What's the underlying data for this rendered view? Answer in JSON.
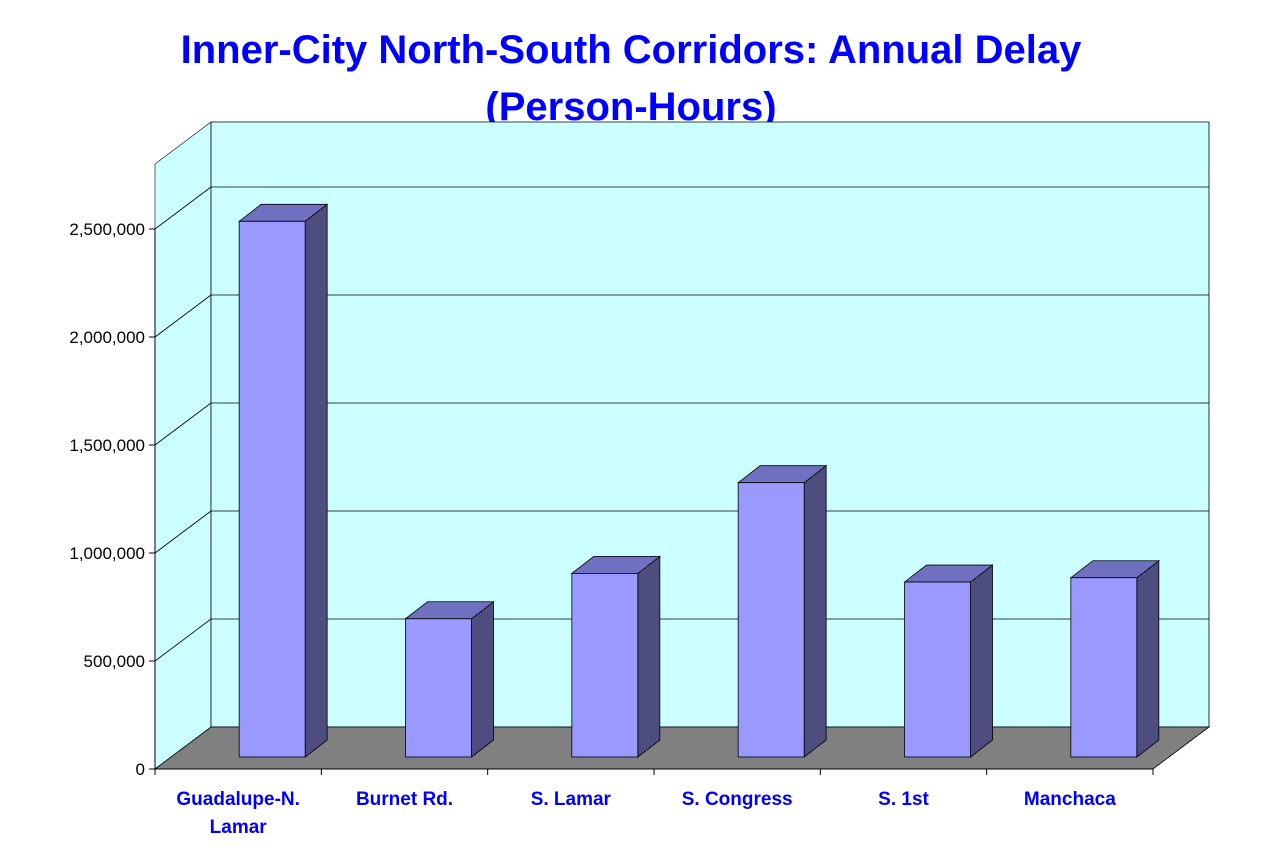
{
  "chart_data": {
    "type": "bar",
    "title_lines": [
      "Inner-City North-South Corridors: Annual Delay",
      "(Person-Hours)"
    ],
    "categories": [
      "Guadalupe-N. Lamar",
      "Burnet Rd.",
      "S. Lamar",
      "S. Congress",
      "S. 1st",
      "Manchaca"
    ],
    "category_lines": [
      [
        "Guadalupe-N.",
        "Lamar"
      ],
      [
        "Burnet Rd."
      ],
      [
        "S. Lamar"
      ],
      [
        "S. Congress"
      ],
      [
        "S. 1st"
      ],
      [
        "Manchaca"
      ]
    ],
    "values": [
      2480000,
      640000,
      850000,
      1270000,
      810000,
      830000
    ],
    "yticks": [
      0,
      500000,
      1000000,
      1500000,
      2000000,
      2500000
    ],
    "ytick_labels": [
      "0",
      "500,000",
      "1,000,000",
      "1,500,000",
      "2,000,000",
      "2,500,000"
    ],
    "ylim": [
      0,
      2500000
    ],
    "grid": true,
    "legend": false,
    "colors": {
      "bar_front": "#9999ff",
      "bar_top": "#7070c0",
      "bar_side": "#4d4d80",
      "wall": "#ccffff",
      "floor": "#808080",
      "title": "#0000ff",
      "category_text": "#0000ff"
    }
  }
}
